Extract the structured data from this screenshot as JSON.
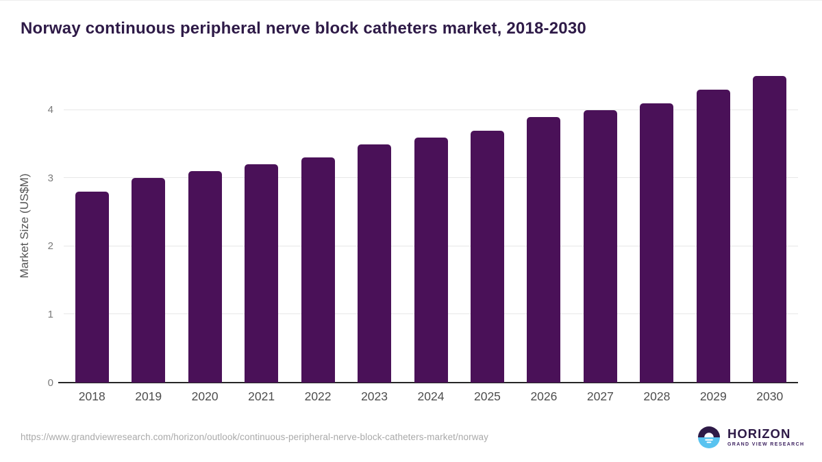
{
  "chart_data": {
    "type": "bar",
    "title": "Norway continuous peripheral nerve block catheters market, 2018-2030",
    "categories": [
      "2018",
      "2019",
      "2020",
      "2021",
      "2022",
      "2023",
      "2024",
      "2025",
      "2026",
      "2027",
      "2028",
      "2029",
      "2030"
    ],
    "values": [
      2.8,
      3.0,
      3.1,
      3.2,
      3.3,
      3.5,
      3.6,
      3.7,
      3.9,
      4.0,
      4.1,
      4.3,
      4.5
    ],
    "xlabel": "",
    "ylabel": "Market Size (US$M)",
    "ylim": [
      0,
      4.6
    ],
    "yticks": [
      0,
      1,
      2,
      3,
      4
    ],
    "grid": true,
    "legend": false,
    "bar_color": "#4a1158"
  },
  "footer": {
    "source_url": "https://www.grandviewresearch.com/horizon/outlook/continuous-peripheral-nerve-block-catheters-market/norway",
    "logo": {
      "title": "HORIZON",
      "subtitle": "GRAND VIEW RESEARCH"
    }
  },
  "colors": {
    "title_text": "#2e1a47",
    "bar": "#4a1158",
    "grid": "#e7e7e7",
    "axis_line": "#262626",
    "y_tick_label": "#7a7a7a",
    "x_tick_label": "#4d4d4d",
    "y_axis_title": "#555555",
    "url_text": "#a9a9a9",
    "logo_dark": "#2e1a47",
    "logo_blue": "#59c3f0"
  }
}
